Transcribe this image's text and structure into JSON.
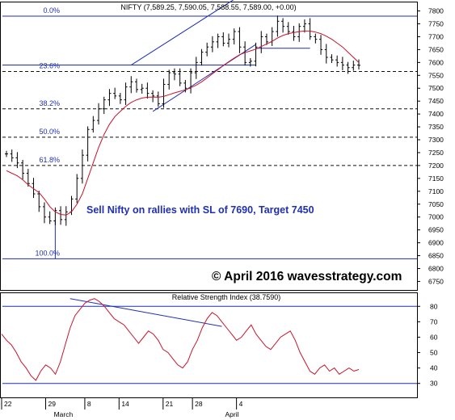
{
  "chart_data": [
    {
      "type": "candlestick",
      "header": "NIFTY (7,589.25, 7,590.05, 7,588.55, 7,589.00, +0.00)",
      "ylim": [
        6720,
        7830
      ],
      "yticks": [
        6750,
        6800,
        6850,
        6900,
        6950,
        7000,
        7050,
        7100,
        7150,
        7200,
        7250,
        7300,
        7350,
        7400,
        7450,
        7500,
        7550,
        7600,
        7650,
        7700,
        7750,
        7800
      ],
      "fibonacci": [
        {
          "label": "0.0%",
          "value": 7780,
          "style": "solid"
        },
        {
          "label": "23.6%",
          "value": 7565,
          "style": "dashed"
        },
        {
          "label": "38.2%",
          "value": 7420,
          "style": "dashed"
        },
        {
          "label": "50.0%",
          "value": 7310,
          "style": "dashed"
        },
        {
          "label": "61.8%",
          "value": 7200,
          "style": "dashed"
        },
        {
          "label": "100.0%",
          "value": 6838,
          "style": "solid"
        }
      ],
      "horizontal_lines": [
        {
          "value": 7590,
          "from": 0,
          "to": 46
        },
        {
          "value": 7655,
          "from": 46,
          "to": 56
        }
      ],
      "channel": {
        "upper": [
          [
            23,
            7590
          ],
          [
            42,
            7845
          ]
        ],
        "lower": [
          [
            27,
            7410
          ],
          [
            46,
            7670
          ]
        ]
      },
      "vertical_line": {
        "index": 9,
        "from": 6838,
        "to": 6990
      },
      "annotation": "Sell Nifty on rallies with SL of 7690, Target 7450",
      "watermark": "© April 2016 wavesstrategy.com",
      "closes": [
        7245,
        7230,
        7210,
        7170,
        7130,
        7090,
        7040,
        7000,
        6985,
        7025,
        6990,
        7020,
        7070,
        7150,
        7240,
        7340,
        7375,
        7420,
        7455,
        7480,
        7470,
        7455,
        7505,
        7525,
        7495,
        7500,
        7480,
        7470,
        7440,
        7515,
        7560,
        7555,
        7520,
        7500,
        7560,
        7600,
        7640,
        7660,
        7680,
        7700,
        7675,
        7690,
        7720,
        7660,
        7600,
        7605,
        7660,
        7700,
        7680,
        7720,
        7760,
        7740,
        7720,
        7700,
        7740,
        7750,
        7700,
        7690,
        7650,
        7620,
        7610,
        7600,
        7590,
        7580,
        7590,
        7589
      ],
      "moving_average": [
        7180,
        7170,
        7160,
        7145,
        7125,
        7110,
        7095,
        7070,
        7040,
        7020,
        7010,
        7008,
        7020,
        7050,
        7090,
        7150,
        7210,
        7270,
        7320,
        7360,
        7390,
        7410,
        7430,
        7445,
        7455,
        7462,
        7465,
        7466,
        7465,
        7468,
        7475,
        7482,
        7488,
        7494,
        7502,
        7512,
        7525,
        7540,
        7556,
        7572,
        7588,
        7603,
        7617,
        7630,
        7638,
        7645,
        7652,
        7662,
        7672,
        7682,
        7695,
        7705,
        7712,
        7716,
        7720,
        7722,
        7722,
        7718,
        7712,
        7702,
        7690,
        7675,
        7660,
        7640,
        7620,
        7600
      ]
    },
    {
      "type": "line",
      "title": "Relative Strength Index (38.7590)",
      "ylim": [
        22,
        88
      ],
      "yticks": [
        30,
        40,
        50,
        60,
        70,
        80
      ],
      "reference_lines": [
        80,
        30
      ],
      "trendline": [
        [
          14,
          85
        ],
        [
          45,
          67
        ]
      ],
      "values": [
        62,
        58,
        55,
        50,
        44,
        40,
        35,
        32,
        38,
        42,
        40,
        36,
        44,
        55,
        66,
        74,
        78,
        82,
        84,
        85,
        83,
        80,
        76,
        72,
        70,
        68,
        64,
        60,
        56,
        60,
        64,
        62,
        58,
        52,
        50,
        46,
        42,
        40,
        44,
        52,
        58,
        66,
        72,
        76,
        74,
        70,
        66,
        62,
        58,
        60,
        64,
        68,
        62,
        58,
        54,
        52,
        56,
        60,
        62,
        64,
        58,
        50,
        44,
        38,
        36,
        40,
        42,
        38,
        40,
        36,
        38,
        40,
        38,
        39
      ],
      "xticks": [
        {
          "index": 0,
          "label": "22"
        },
        {
          "index": 9,
          "label": "29"
        },
        {
          "index": 17,
          "label": "8"
        },
        {
          "index": 24,
          "label": "14"
        },
        {
          "index": 33,
          "label": "21"
        },
        {
          "index": 39,
          "label": "28"
        },
        {
          "index": 48,
          "label": "4"
        }
      ],
      "months": [
        {
          "index": 11,
          "label": "March"
        },
        {
          "index": 46,
          "label": "April"
        }
      ]
    }
  ]
}
